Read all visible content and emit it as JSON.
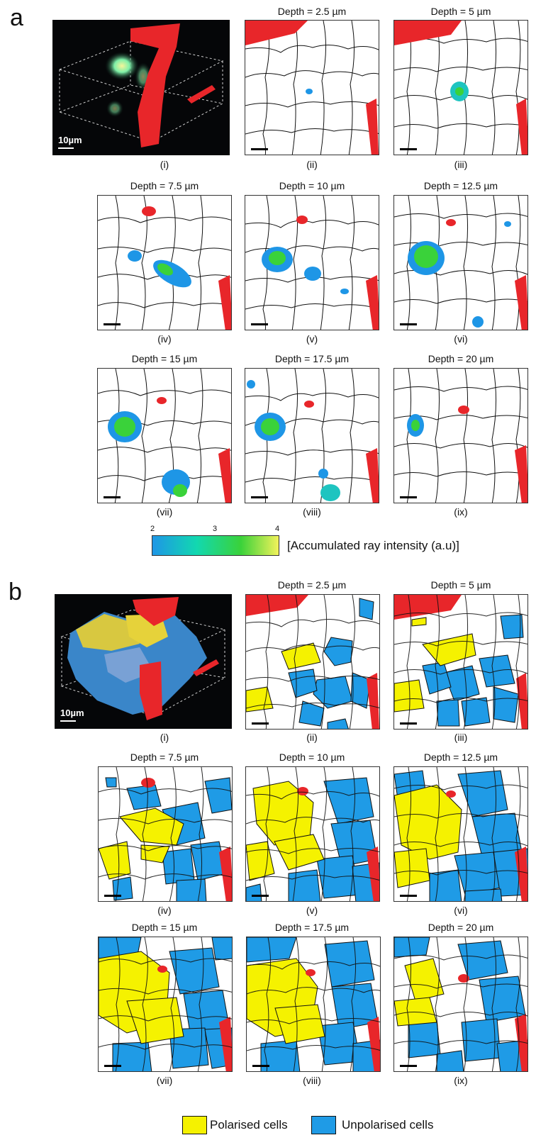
{
  "panels": {
    "a": {
      "letter": "a",
      "titles": [
        "Depth = 2.5 µm",
        "Depth = 5 µm",
        "Depth = 7.5 µm",
        "Depth = 10 µm",
        "Depth = 12.5 µm",
        "Depth = 15 µm",
        "Depth = 17.5 µm",
        "Depth = 20 µm"
      ],
      "labels": [
        "(i)",
        "(ii)",
        "(iii)",
        "(iv)",
        "(v)",
        "(vi)",
        "(vii)",
        "(viii)",
        "(ix)"
      ],
      "scalebar_text": "10µm",
      "colorbar": {
        "ticks": [
          "2",
          "3",
          "4"
        ],
        "label": "[Accumulated ray intensity (a.u)]",
        "colors": [
          "#1e96e6",
          "#12d8b0",
          "#3ad23a",
          "#f2f25a"
        ]
      }
    },
    "b": {
      "letter": "b",
      "titles": [
        "Depth = 2.5 µm",
        "Depth = 5 µm",
        "Depth = 7.5 µm",
        "Depth = 10 µm",
        "Depth = 12.5 µm",
        "Depth = 15 µm",
        "Depth = 17.5 µm",
        "Depth = 20 µm"
      ],
      "labels": [
        "(i)",
        "(ii)",
        "(iii)",
        "(iv)",
        "(v)",
        "(vi)",
        "(vii)",
        "(viii)",
        "(ix)"
      ],
      "scalebar_text": "10µm",
      "legend": [
        {
          "label": "Polarised cells",
          "color": "#f5f200"
        },
        {
          "label": "Unpolarised cells",
          "color": "#1f9be6"
        }
      ]
    }
  },
  "colors": {
    "vessel": "#e8262a",
    "polarised": "#f5f200",
    "unpolarised": "#1f9be6",
    "outline": "#111111"
  }
}
